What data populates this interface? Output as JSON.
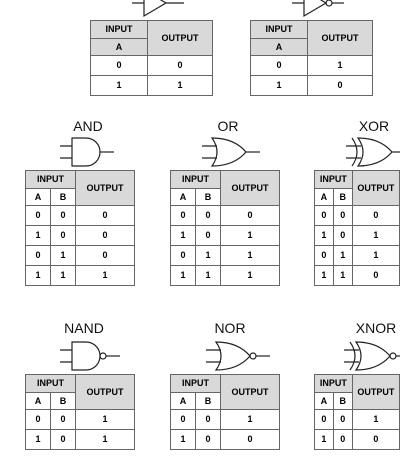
{
  "tables": {
    "buffer": {
      "input_label": "INPUT",
      "output_label": "OUTPUT",
      "col": "A",
      "rows": [
        [
          "0",
          "0"
        ],
        [
          "1",
          "1"
        ]
      ]
    },
    "not": {
      "input_label": "INPUT",
      "output_label": "OUTPUT",
      "col": "A",
      "rows": [
        [
          "0",
          "1"
        ],
        [
          "1",
          "0"
        ]
      ]
    },
    "and": {
      "title": "AND",
      "input_label": "INPUT",
      "output_label": "OUTPUT",
      "col_a": "A",
      "col_b": "B",
      "rows": [
        [
          "0",
          "0",
          "0"
        ],
        [
          "1",
          "0",
          "0"
        ],
        [
          "0",
          "1",
          "0"
        ],
        [
          "1",
          "1",
          "1"
        ]
      ]
    },
    "or": {
      "title": "OR",
      "input_label": "INPUT",
      "output_label": "OUTPUT",
      "col_a": "A",
      "col_b": "B",
      "rows": [
        [
          "0",
          "0",
          "0"
        ],
        [
          "1",
          "0",
          "1"
        ],
        [
          "0",
          "1",
          "1"
        ],
        [
          "1",
          "1",
          "1"
        ]
      ]
    },
    "xor": {
      "title": "XOR",
      "input_label": "INPUT",
      "output_label": "OUTPUT",
      "col_a": "A",
      "col_b": "B",
      "rows": [
        [
          "0",
          "0",
          "0"
        ],
        [
          "1",
          "0",
          "1"
        ],
        [
          "0",
          "1",
          "1"
        ],
        [
          "1",
          "1",
          "0"
        ]
      ]
    },
    "nand": {
      "title": "NAND",
      "input_label": "INPUT",
      "output_label": "OUTPUT",
      "col_a": "A",
      "col_b": "B",
      "rows": [
        [
          "0",
          "0",
          "1"
        ],
        [
          "1",
          "0",
          "1"
        ]
      ]
    },
    "nor": {
      "title": "NOR",
      "input_label": "INPUT",
      "output_label": "OUTPUT",
      "col_a": "A",
      "col_b": "B",
      "rows": [
        [
          "0",
          "0",
          "1"
        ],
        [
          "1",
          "0",
          "0"
        ]
      ]
    },
    "xnor": {
      "title": "XNOR",
      "input_label": "INPUT",
      "output_label": "OUTPUT",
      "col_a": "A",
      "col_b": "B",
      "rows": [
        [
          "0",
          "0",
          "1"
        ],
        [
          "1",
          "0",
          "0"
        ]
      ]
    }
  }
}
